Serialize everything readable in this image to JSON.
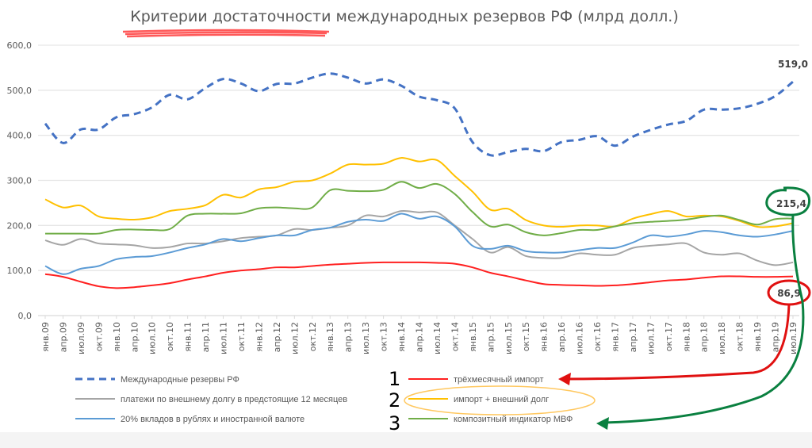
{
  "chart_data": {
    "type": "line",
    "title": "Критерии достаточности международных резервов РФ (млрд долл.)",
    "xlabel": "",
    "ylabel": "",
    "ylim": [
      0,
      600
    ],
    "yticks": [
      "0,0",
      "100,0",
      "200,0",
      "300,0",
      "400,0",
      "500,0",
      "600,0"
    ],
    "grid": true,
    "legend_position": "bottom",
    "categories": [
      "янв.09",
      "апр.09",
      "июл.09",
      "окт.09",
      "янв.10",
      "апр.10",
      "июл.10",
      "окт.10",
      "янв.11",
      "апр.11",
      "июл.11",
      "окт.11",
      "янв.12",
      "апр.12",
      "июл.12",
      "окт.12",
      "янв.13",
      "апр.13",
      "июл.13",
      "окт.13",
      "янв.14",
      "апр.14",
      "июл.14",
      "окт.14",
      "янв.15",
      "апр.15",
      "июл.15",
      "окт.15",
      "янв.16",
      "апр.16",
      "июл.16",
      "окт.16",
      "янв.17",
      "апр.17",
      "июл.17",
      "окт.17",
      "янв.18",
      "апр.18",
      "июл.18",
      "окт.18",
      "янв.19",
      "апр.19",
      "июл.19"
    ],
    "series": [
      {
        "name": "Международные резервы РФ",
        "color": "#4472c4",
        "dashed": true,
        "values": [
          426,
          383,
          413,
          413,
          440,
          447,
          462,
          490,
          480,
          505,
          525,
          515,
          498,
          514,
          515,
          528,
          537,
          528,
          515,
          524,
          510,
          486,
          478,
          460,
          385,
          356,
          363,
          370,
          365,
          385,
          390,
          398,
          377,
          397,
          412,
          424,
          432,
          457,
          457,
          460,
          470,
          487,
          519.0
        ],
        "end_label": "519,0"
      },
      {
        "name": "трёхмесячный импорт",
        "color": "#ff2020",
        "dashed": false,
        "values": [
          92,
          86,
          75,
          65,
          61,
          63,
          67,
          72,
          80,
          87,
          95,
          100,
          103,
          107,
          107,
          110,
          113,
          115,
          117,
          118,
          118,
          118,
          117,
          115,
          107,
          95,
          87,
          78,
          70,
          68,
          67,
          66,
          67,
          70,
          74,
          78,
          80,
          84,
          87,
          87,
          86,
          86,
          86.9
        ],
        "end_label": "86,9"
      },
      {
        "name": "платежи по внешнему долгу в предстоящие 12 месяцев",
        "color": "#a5a5a5",
        "dashed": false,
        "values": [
          167,
          157,
          170,
          160,
          158,
          156,
          150,
          152,
          160,
          160,
          165,
          172,
          175,
          178,
          192,
          190,
          195,
          200,
          222,
          220,
          232,
          229,
          229,
          200,
          170,
          140,
          152,
          132,
          128,
          128,
          138,
          135,
          135,
          150,
          155,
          158,
          160,
          140,
          135,
          138,
          122,
          112,
          118
        ]
      },
      {
        "name": "импорт + внешний долг",
        "color": "#ffc000",
        "dashed": false,
        "values": [
          258,
          240,
          244,
          220,
          215,
          213,
          218,
          232,
          237,
          245,
          268,
          262,
          280,
          285,
          297,
          300,
          315,
          335,
          335,
          337,
          350,
          342,
          345,
          310,
          275,
          235,
          237,
          212,
          200,
          197,
          200,
          200,
          198,
          215,
          225,
          232,
          220,
          222,
          220,
          210,
          197,
          198,
          205
        ]
      },
      {
        "name": "20% вкладов в рублях и иностранной валюте",
        "color": "#5b9bd5",
        "dashed": false,
        "values": [
          110,
          92,
          104,
          110,
          125,
          130,
          132,
          140,
          150,
          158,
          170,
          165,
          172,
          178,
          178,
          190,
          195,
          208,
          213,
          210,
          226,
          215,
          220,
          198,
          155,
          148,
          155,
          143,
          140,
          140,
          145,
          150,
          150,
          162,
          178,
          175,
          180,
          188,
          185,
          178,
          175,
          180,
          188
        ]
      },
      {
        "name": "композитный индикатор МВФ",
        "color": "#70ad47",
        "dashed": false,
        "values": [
          182,
          182,
          182,
          182,
          190,
          191,
          190,
          192,
          222,
          226,
          226,
          227,
          238,
          240,
          238,
          240,
          278,
          277,
          276,
          279,
          297,
          283,
          292,
          270,
          230,
          198,
          202,
          185,
          178,
          183,
          190,
          190,
          198,
          205,
          208,
          210,
          213,
          219,
          222,
          212,
          202,
          214,
          215.4
        ],
        "end_label": "215,4"
      }
    ],
    "annotations": [
      "1",
      "2",
      "3"
    ]
  }
}
